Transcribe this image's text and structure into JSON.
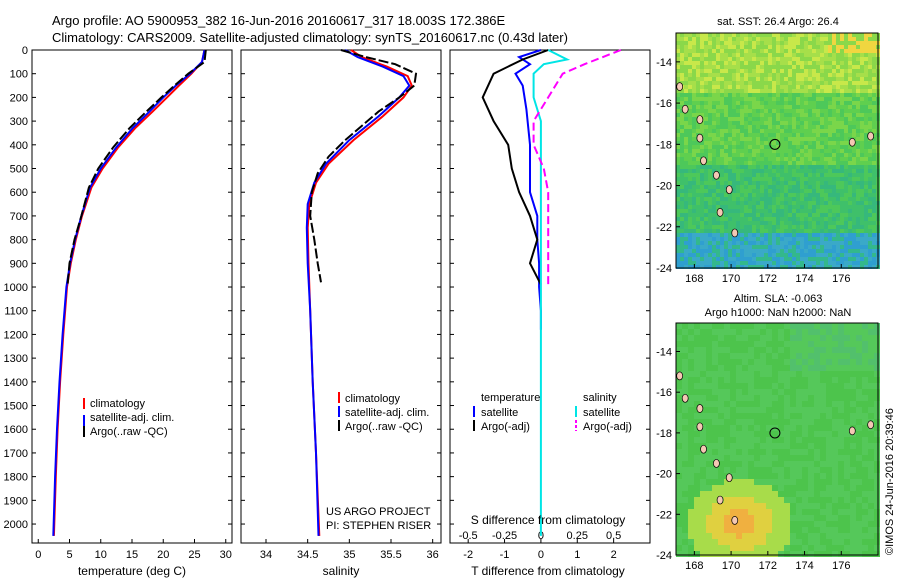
{
  "header": {
    "line1": "Argo profile: AO 5900953_382 16-Jun-2016 20160617_317 18.003S 172.386E",
    "line2": "Climatology: CARS2009. Satellite-adjusted climatology: synTS_20160617.nc (0.43d later)"
  },
  "colors": {
    "climatology": "#ff0000",
    "satellite": "#0000ff",
    "argo": "#000000",
    "sal_satellite": "#00e5e5",
    "sal_argo": "#ff00ff"
  },
  "chart_data": [
    {
      "type": "line",
      "panel": "temperature",
      "xlabel": "temperature (deg C)",
      "ylabel": "",
      "xlim": [
        -1,
        31
      ],
      "ylim": [
        2080,
        0
      ],
      "xticks": [
        "0",
        "5",
        "10",
        "15",
        "20",
        "25",
        "30"
      ],
      "yticks": [
        "0",
        "100",
        "200",
        "300",
        "400",
        "500",
        "600",
        "700",
        "800",
        "900",
        "1000",
        "1100",
        "1200",
        "1300",
        "1400",
        "1500",
        "1600",
        "1700",
        "1800",
        "1900",
        "2000"
      ],
      "legend": [
        "climatology",
        "satellite-adj. clim.",
        "Argo(..raw -QC)"
      ],
      "series": [
        {
          "name": "climatology",
          "color": "#ff0000",
          "points": [
            [
              26.6,
              0
            ],
            [
              26.2,
              50
            ],
            [
              24.5,
              100
            ],
            [
              22.5,
              150
            ],
            [
              20.6,
              200
            ],
            [
              18.3,
              260
            ],
            [
              15.5,
              330
            ],
            [
              12.8,
              410
            ],
            [
              10.3,
              500
            ],
            [
              8.5,
              580
            ],
            [
              7.0,
              700
            ],
            [
              6.0,
              800
            ],
            [
              5.2,
              900
            ],
            [
              4.6,
              1000
            ],
            [
              4.0,
              1200
            ],
            [
              3.5,
              1400
            ],
            [
              3.1,
              1600
            ],
            [
              2.8,
              1800
            ],
            [
              2.5,
              2050
            ]
          ]
        },
        {
          "name": "satellite-adj. clim.",
          "color": "#0000ff",
          "points": [
            [
              26.6,
              0
            ],
            [
              26.2,
              50
            ],
            [
              24.3,
              100
            ],
            [
              22.0,
              150
            ],
            [
              20.0,
              200
            ],
            [
              17.8,
              260
            ],
            [
              15.1,
              330
            ],
            [
              12.5,
              410
            ],
            [
              10.0,
              500
            ],
            [
              8.3,
              580
            ],
            [
              6.9,
              700
            ],
            [
              5.9,
              800
            ],
            [
              5.1,
              900
            ],
            [
              4.5,
              1000
            ],
            [
              3.9,
              1200
            ],
            [
              3.4,
              1400
            ],
            [
              3.0,
              1600
            ],
            [
              2.7,
              1800
            ],
            [
              2.4,
              2050
            ]
          ]
        },
        {
          "name": "Argo(..raw -QC)",
          "color": "#000000",
          "points": [
            [
              26.8,
              0
            ],
            [
              26.6,
              50
            ],
            [
              24.0,
              100
            ],
            [
              21.8,
              150
            ],
            [
              19.7,
              200
            ],
            [
              17.3,
              260
            ],
            [
              14.6,
              330
            ],
            [
              12.0,
              410
            ],
            [
              9.6,
              500
            ],
            [
              8.1,
              580
            ],
            [
              6.9,
              700
            ],
            [
              5.8,
              800
            ],
            [
              5.0,
              900
            ],
            [
              4.7,
              990
            ]
          ]
        }
      ]
    },
    {
      "type": "line",
      "panel": "salinity",
      "xlabel": "salinity",
      "ylabel": "",
      "xlim": [
        33.7,
        36.1
      ],
      "ylim": [
        2080,
        0
      ],
      "xticks": [
        "34",
        "34.5",
        "35",
        "35.5",
        "36"
      ],
      "legend": [
        "climatology",
        "satellite-adj. clim.",
        "Argo(..raw -QC)"
      ],
      "annotation": [
        "US ARGO PROJECT",
        "PI: STEPHEN RISER"
      ],
      "series": [
        {
          "name": "climatology",
          "color": "#ff0000",
          "points": [
            [
              35.02,
              0
            ],
            [
              35.15,
              30
            ],
            [
              35.45,
              70
            ],
            [
              35.7,
              110
            ],
            [
              35.75,
              150
            ],
            [
              35.65,
              200
            ],
            [
              35.4,
              280
            ],
            [
              35.05,
              380
            ],
            [
              34.75,
              480
            ],
            [
              34.6,
              560
            ],
            [
              34.52,
              650
            ],
            [
              34.5,
              750
            ],
            [
              34.51,
              900
            ],
            [
              34.53,
              1100
            ],
            [
              34.56,
              1400
            ],
            [
              34.6,
              1700
            ],
            [
              34.64,
              2050
            ]
          ]
        },
        {
          "name": "satellite-adj. clim.",
          "color": "#0000ff",
          "points": [
            [
              34.95,
              0
            ],
            [
              35.1,
              30
            ],
            [
              35.4,
              70
            ],
            [
              35.65,
              110
            ],
            [
              35.72,
              150
            ],
            [
              35.6,
              200
            ],
            [
              35.35,
              280
            ],
            [
              35.0,
              380
            ],
            [
              34.72,
              480
            ],
            [
              34.58,
              560
            ],
            [
              34.5,
              650
            ],
            [
              34.49,
              750
            ],
            [
              34.5,
              900
            ],
            [
              34.53,
              1100
            ],
            [
              34.56,
              1400
            ],
            [
              34.6,
              1700
            ],
            [
              34.63,
              2050
            ]
          ]
        },
        {
          "name": "Argo(..raw -QC)",
          "color": "#000000",
          "points": [
            [
              34.9,
              0
            ],
            [
              35.2,
              30
            ],
            [
              35.55,
              60
            ],
            [
              35.8,
              100
            ],
            [
              35.78,
              150
            ],
            [
              35.6,
              200
            ],
            [
              35.35,
              260
            ],
            [
              34.95,
              380
            ],
            [
              34.75,
              450
            ],
            [
              34.62,
              520
            ],
            [
              34.55,
              600
            ],
            [
              34.53,
              700
            ],
            [
              34.58,
              800
            ],
            [
              34.62,
              900
            ],
            [
              34.66,
              980
            ]
          ]
        }
      ]
    },
    {
      "type": "line",
      "panel": "difference",
      "xlabel": "T difference from climatology",
      "x2label": "S difference from climatology",
      "xlim": [
        -2.5,
        3
      ],
      "x2lim": [
        -0.625,
        0.75
      ],
      "ylim": [
        2080,
        0
      ],
      "xticks": [
        "-2",
        "-1",
        "0",
        "1",
        "2"
      ],
      "x2ticks": [
        "-0.5",
        "-0.25",
        "0",
        "0.25",
        "0.5"
      ],
      "legend": {
        "temperature_title": "temperature",
        "salinity_title": "salinity",
        "temperature": [
          "satellite",
          "Argo(-adj)"
        ],
        "salinity": [
          "satellite",
          "Argo(-adj)"
        ]
      },
      "series": [
        {
          "name": "T satellite",
          "color": "#0000ff",
          "points": [
            [
              0,
              0
            ],
            [
              -0.6,
              30
            ],
            [
              -0.3,
              60
            ],
            [
              -0.7,
              100
            ],
            [
              -0.5,
              150
            ],
            [
              -0.4,
              250
            ],
            [
              -0.3,
              400
            ],
            [
              -0.3,
              600
            ],
            [
              -0.1,
              700
            ],
            [
              -0.1,
              800
            ],
            [
              -0.05,
              900
            ],
            [
              -0.05,
              1000
            ],
            [
              0,
              1100
            ],
            [
              0,
              1180
            ]
          ]
        },
        {
          "name": "T Argo(-adj)",
          "color": "#000000",
          "points": [
            [
              0.2,
              0
            ],
            [
              -0.5,
              40
            ],
            [
              -1.3,
              100
            ],
            [
              -1.6,
              200
            ],
            [
              -1.3,
              300
            ],
            [
              -0.9,
              400
            ],
            [
              -0.8,
              500
            ],
            [
              -0.6,
              600
            ],
            [
              -0.3,
              700
            ],
            [
              -0.1,
              800
            ],
            [
              -0.3,
              900
            ],
            [
              0,
              990
            ]
          ]
        },
        {
          "name": "S satellite",
          "color": "#00e5e5",
          "points": [
            [
              0.05,
              0
            ],
            [
              0.18,
              40
            ],
            [
              0.02,
              60
            ],
            [
              -0.05,
              100
            ],
            [
              -0.05,
              200
            ],
            [
              0,
              300
            ],
            [
              0,
              500
            ],
            [
              0,
              1000
            ],
            [
              0,
              1500
            ],
            [
              0,
              2050
            ]
          ]
        },
        {
          "name": "S Argo(-adj)",
          "color": "#ff00ff",
          "points": [
            [
              0.55,
              0
            ],
            [
              0.3,
              60
            ],
            [
              0.15,
              100
            ],
            [
              0.05,
              200
            ],
            [
              -0.05,
              300
            ],
            [
              -0.05,
              400
            ],
            [
              0.02,
              500
            ],
            [
              0.05,
              600
            ],
            [
              0.05,
              700
            ],
            [
              0.05,
              800
            ],
            [
              0.05,
              900
            ],
            [
              0.05,
              990
            ]
          ]
        }
      ]
    }
  ],
  "maps": {
    "sst": {
      "title": "sat. SST: 26.4  Argo: 26.4",
      "yticks": [
        "-14",
        "-16",
        "-18",
        "-20",
        "-22",
        "-24"
      ],
      "xticks": [
        "168",
        "170",
        "172",
        "174",
        "176"
      ],
      "marker": {
        "lon": 172.386,
        "lat": -18.003
      }
    },
    "sla": {
      "title1": "Altim. SLA: -0.063",
      "title2": "Argo h1000: NaN  h2000: NaN",
      "yticks": [
        "-14",
        "-16",
        "-18",
        "-20",
        "-22",
        "-24"
      ],
      "xticks": [
        "168",
        "170",
        "172",
        "174",
        "176"
      ],
      "marker": {
        "lon": 172.386,
        "lat": -18.003
      }
    },
    "xlim": [
      167,
      178
    ],
    "ylim": [
      -24,
      -12.6
    ]
  },
  "stamp": "©IMOS 24-Jun-2016 20:39:46"
}
